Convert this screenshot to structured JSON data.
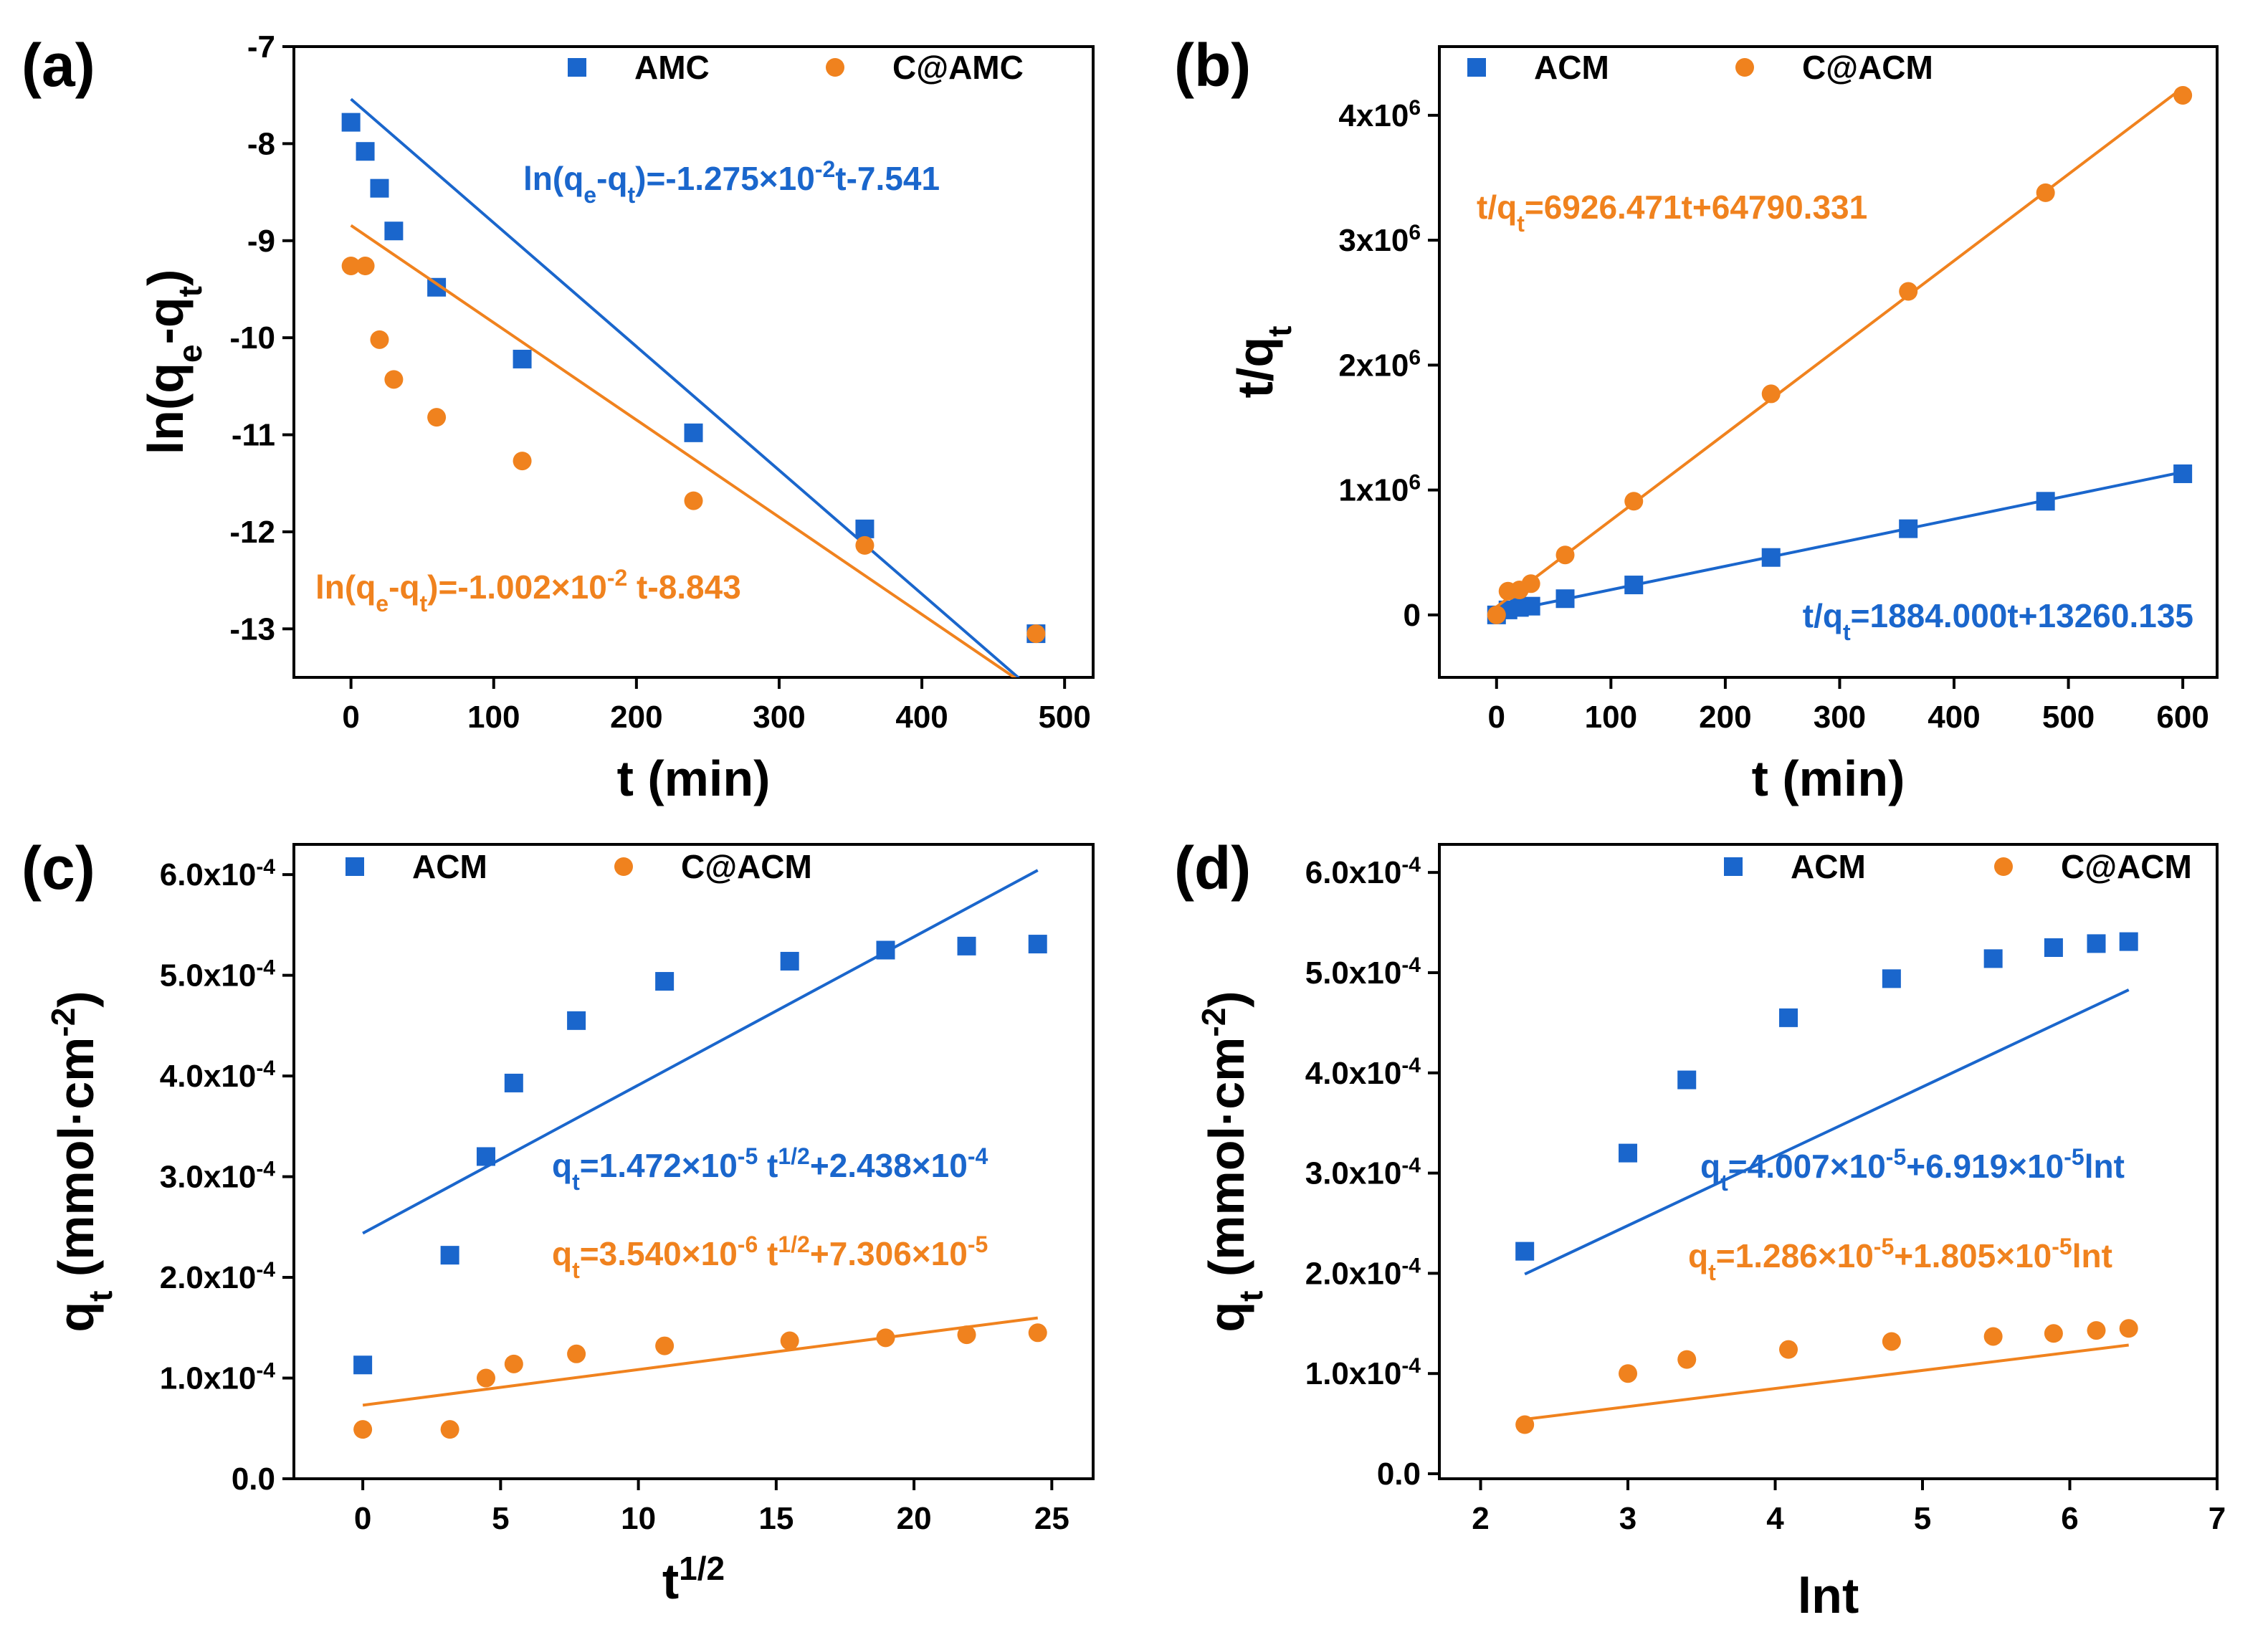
{
  "colors": {
    "blue": "#1a66cc",
    "orange": "#f0821e"
  },
  "chart_data": [
    {
      "label": "(a)",
      "type": "scatter",
      "xlabel": "t (min)",
      "ylabel": {
        "base": "ln(q",
        "sub1": "e",
        "mid": "-q",
        "sub2": "t",
        "end": ")"
      },
      "xlim": [
        -40,
        520
      ],
      "ylim": [
        -13.5,
        -7
      ],
      "xticks": [
        0,
        100,
        200,
        300,
        400,
        500
      ],
      "yticks": [
        -13,
        -12,
        -11,
        -10,
        -9,
        -8,
        -7
      ],
      "legend": [
        {
          "name": "AMC",
          "marker": "square",
          "color": "#1a66cc"
        },
        {
          "name": "C@AMC",
          "marker": "circle",
          "color": "#f0821e"
        }
      ],
      "series": [
        {
          "name": "AMC",
          "marker": "square",
          "color": "#1a66cc",
          "x": [
            0,
            10,
            20,
            30,
            60,
            120,
            240,
            360,
            480
          ],
          "y": [
            -7.78,
            -8.08,
            -8.46,
            -8.9,
            -9.48,
            -10.22,
            -10.98,
            -11.97,
            -13.05
          ],
          "fit": {
            "slope": -0.01275,
            "intercept": -7.541,
            "x_range": [
              0,
              480
            ]
          },
          "equation": [
            {
              "t": "ln(q"
            },
            {
              "t": "e",
              "s": "sub"
            },
            {
              "t": "-q"
            },
            {
              "t": "t",
              "s": "sub"
            },
            {
              "t": ")=-1.275×10"
            },
            {
              "t": "-2",
              "s": "sup"
            },
            {
              "t": "t-7.541"
            }
          ]
        },
        {
          "name": "C@AMC",
          "marker": "circle",
          "color": "#f0821e",
          "x": [
            0,
            10,
            20,
            30,
            60,
            120,
            240,
            360,
            480
          ],
          "y": [
            -9.26,
            -9.26,
            -10.02,
            -10.43,
            -10.82,
            -11.27,
            -11.68,
            -12.14,
            -13.05
          ],
          "fit": {
            "slope": -0.01002,
            "intercept": -8.843,
            "x_range": [
              0,
              480
            ]
          },
          "equation": [
            {
              "t": "ln(q"
            },
            {
              "t": "e",
              "s": "sub"
            },
            {
              "t": "-q"
            },
            {
              "t": "t",
              "s": "sub"
            },
            {
              "t": ")=-1.002×10"
            },
            {
              "t": "-2",
              "s": "sup"
            },
            {
              "t": " t-8.843"
            }
          ]
        }
      ]
    },
    {
      "label": "(b)",
      "type": "scatter",
      "xlabel": "t (min)",
      "ylabel": {
        "base": "t/q",
        "sub1": "t"
      },
      "xlim": [
        -50,
        630
      ],
      "ylim": [
        -500000,
        4550000
      ],
      "xticks": [
        0,
        100,
        200,
        300,
        400,
        500,
        600
      ],
      "yticks": [
        0,
        1000000,
        2000000,
        3000000,
        4000000
      ],
      "ytick_labels": [
        {
          "base": "0",
          "exp": ""
        },
        {
          "base": "1x10",
          "exp": "6"
        },
        {
          "base": "2x10",
          "exp": "6"
        },
        {
          "base": "3x10",
          "exp": "6"
        },
        {
          "base": "4x10",
          "exp": "6"
        }
      ],
      "legend": [
        {
          "name": "ACM",
          "marker": "square",
          "color": "#1a66cc"
        },
        {
          "name": "C@ACM",
          "marker": "circle",
          "color": "#f0821e"
        }
      ],
      "series": [
        {
          "name": "ACM",
          "marker": "square",
          "color": "#1a66cc",
          "x": [
            0,
            10,
            20,
            30,
            60,
            120,
            240,
            360,
            480,
            600
          ],
          "y": [
            0,
            40000,
            60000,
            70000,
            130000,
            240000,
            460000,
            690000,
            910000,
            1130000
          ],
          "fit": {
            "slope": 1884.0,
            "intercept": 13260.135,
            "x_range": [
              0,
              600
            ]
          },
          "equation": [
            {
              "t": "t/q"
            },
            {
              "t": "t",
              "s": "sub"
            },
            {
              "t": "=1884.000t+13260.135"
            }
          ]
        },
        {
          "name": "C@ACM",
          "marker": "circle",
          "color": "#f0821e",
          "x": [
            0,
            10,
            20,
            30,
            60,
            120,
            240,
            360,
            480,
            600
          ],
          "y": [
            0,
            190000,
            200000,
            250000,
            480000,
            910000,
            1770000,
            2590000,
            3380000,
            4160000
          ],
          "fit": {
            "slope": 6926.471,
            "intercept": 64790.331,
            "x_range": [
              0,
              600
            ]
          },
          "equation": [
            {
              "t": "t/q"
            },
            {
              "t": "t",
              "s": "sub"
            },
            {
              "t": "=6926.471t+64790.331"
            }
          ]
        }
      ]
    },
    {
      "label": "(c)",
      "type": "scatter",
      "xlabel": {
        "base": "t",
        "sup": "1/2"
      },
      "ylabel": {
        "base": "q",
        "sub1": "t",
        "mid": " (mmol·cm",
        "sup": "-2",
        "end": ")"
      },
      "xlim": [
        -2.5,
        26.5
      ],
      "ylim": [
        0,
        0.00063
      ],
      "xticks": [
        0,
        5,
        10,
        15,
        20,
        25
      ],
      "yticks": [
        0,
        0.0001,
        0.0002,
        0.0003,
        0.0004,
        0.0005,
        0.0006
      ],
      "ytick_labels": [
        {
          "base": "0.0",
          "exp": ""
        },
        {
          "base": "1.0x10",
          "exp": "-4"
        },
        {
          "base": "2.0x10",
          "exp": "-4"
        },
        {
          "base": "3.0x10",
          "exp": "-4"
        },
        {
          "base": "4.0x10",
          "exp": "-4"
        },
        {
          "base": "5.0x10",
          "exp": "-4"
        },
        {
          "base": "6.0x10",
          "exp": "-4"
        }
      ],
      "legend": [
        {
          "name": "ACM",
          "marker": "square",
          "color": "#1a66cc"
        },
        {
          "name": "C@ACM",
          "marker": "circle",
          "color": "#f0821e"
        }
      ],
      "series": [
        {
          "name": "ACM",
          "marker": "square",
          "color": "#1a66cc",
          "x": [
            0,
            3.16,
            4.47,
            5.48,
            7.75,
            10.95,
            15.49,
            18.97,
            21.91,
            24.49
          ],
          "y": [
            0.000113,
            0.000222,
            0.00032,
            0.000393,
            0.000455,
            0.000494,
            0.000514,
            0.000525,
            0.000529,
            0.000531
          ],
          "fit": {
            "slope": 1.472e-05,
            "intercept": 0.0002438,
            "x_range": [
              0,
              24.49
            ]
          },
          "equation": [
            {
              "t": "q"
            },
            {
              "t": "t",
              "s": "sub"
            },
            {
              "t": "=1.472×10"
            },
            {
              "t": "-5",
              "s": "sup"
            },
            {
              "t": " t"
            },
            {
              "t": "1/2",
              "s": "sup"
            },
            {
              "t": "+2.438×10"
            },
            {
              "t": "-4",
              "s": "sup"
            }
          ]
        },
        {
          "name": "C@ACM",
          "marker": "circle",
          "color": "#f0821e",
          "x": [
            0,
            3.16,
            4.47,
            5.48,
            7.75,
            10.95,
            15.49,
            18.97,
            21.91,
            24.49
          ],
          "y": [
            4.9e-05,
            4.9e-05,
            0.0001,
            0.000114,
            0.000124,
            0.000132,
            0.000137,
            0.00014,
            0.000143,
            0.000145
          ],
          "fit": {
            "slope": 3.54e-06,
            "intercept": 7.306e-05,
            "x_range": [
              0,
              24.49
            ]
          },
          "equation": [
            {
              "t": "q"
            },
            {
              "t": "t",
              "s": "sub"
            },
            {
              "t": "=3.540×10"
            },
            {
              "t": "-6",
              "s": "sup"
            },
            {
              "t": " t"
            },
            {
              "t": "1/2",
              "s": "sup"
            },
            {
              "t": "+7.306×10"
            },
            {
              "t": "-5",
              "s": "sup"
            }
          ]
        }
      ]
    },
    {
      "label": "(d)",
      "type": "scatter",
      "xlabel": "lnt",
      "ylabel": {
        "base": "q",
        "sub1": "t",
        "mid": " (mmol·cm",
        "sup": "-2",
        "end": ")"
      },
      "xlim": [
        1.72,
        7.0
      ],
      "ylim": [
        -5e-06,
        0.000628
      ],
      "xticks": [
        2,
        3,
        4,
        5,
        6,
        7
      ],
      "yticks": [
        0,
        0.0001,
        0.0002,
        0.0003,
        0.0004,
        0.0005,
        0.0006
      ],
      "ytick_labels": [
        {
          "base": "0.0",
          "exp": ""
        },
        {
          "base": "1.0x10",
          "exp": "-4"
        },
        {
          "base": "2.0x10",
          "exp": "-4"
        },
        {
          "base": "3.0x10",
          "exp": "-4"
        },
        {
          "base": "4.0x10",
          "exp": "-4"
        },
        {
          "base": "5.0x10",
          "exp": "-4"
        },
        {
          "base": "6.0x10",
          "exp": "-4"
        }
      ],
      "legend": [
        {
          "name": "ACM",
          "marker": "square",
          "color": "#1a66cc"
        },
        {
          "name": "C@ACM",
          "marker": "circle",
          "color": "#f0821e"
        }
      ],
      "series": [
        {
          "name": "ACM",
          "marker": "square",
          "color": "#1a66cc",
          "x": [
            2.3,
            3.0,
            3.4,
            4.09,
            4.79,
            5.48,
            5.89,
            6.18,
            6.4
          ],
          "y": [
            0.000222,
            0.00032,
            0.000393,
            0.000455,
            0.000494,
            0.000514,
            0.000525,
            0.000529,
            0.000531
          ],
          "fit": {
            "slope": 6.919e-05,
            "intercept": 4.007e-05,
            "x_range": [
              2.3,
              6.4
            ]
          },
          "equation": [
            {
              "t": "q"
            },
            {
              "t": "t",
              "s": "sub"
            },
            {
              "t": "=4.007×10"
            },
            {
              "t": "-5",
              "s": "sup"
            },
            {
              "t": "+6.919×10"
            },
            {
              "t": "-5",
              "s": "sup"
            },
            {
              "t": "lnt"
            }
          ]
        },
        {
          "name": "C@ACM",
          "marker": "circle",
          "color": "#f0821e",
          "x": [
            2.3,
            3.0,
            3.4,
            4.09,
            4.79,
            5.48,
            5.89,
            6.18,
            6.4
          ],
          "y": [
            4.9e-05,
            0.0001,
            0.000114,
            0.000124,
            0.000132,
            0.000137,
            0.00014,
            0.000143,
            0.000145
          ],
          "fit": {
            "slope": 1.805e-05,
            "intercept": 1.286e-05,
            "x_range": [
              2.3,
              6.4
            ]
          },
          "equation": [
            {
              "t": "q"
            },
            {
              "t": "t",
              "s": "sub"
            },
            {
              "t": "=1.286×10"
            },
            {
              "t": "-5",
              "s": "sup"
            },
            {
              "t": "+1.805×10"
            },
            {
              "t": "-5",
              "s": "sup"
            },
            {
              "t": "lnt"
            }
          ]
        }
      ]
    }
  ]
}
